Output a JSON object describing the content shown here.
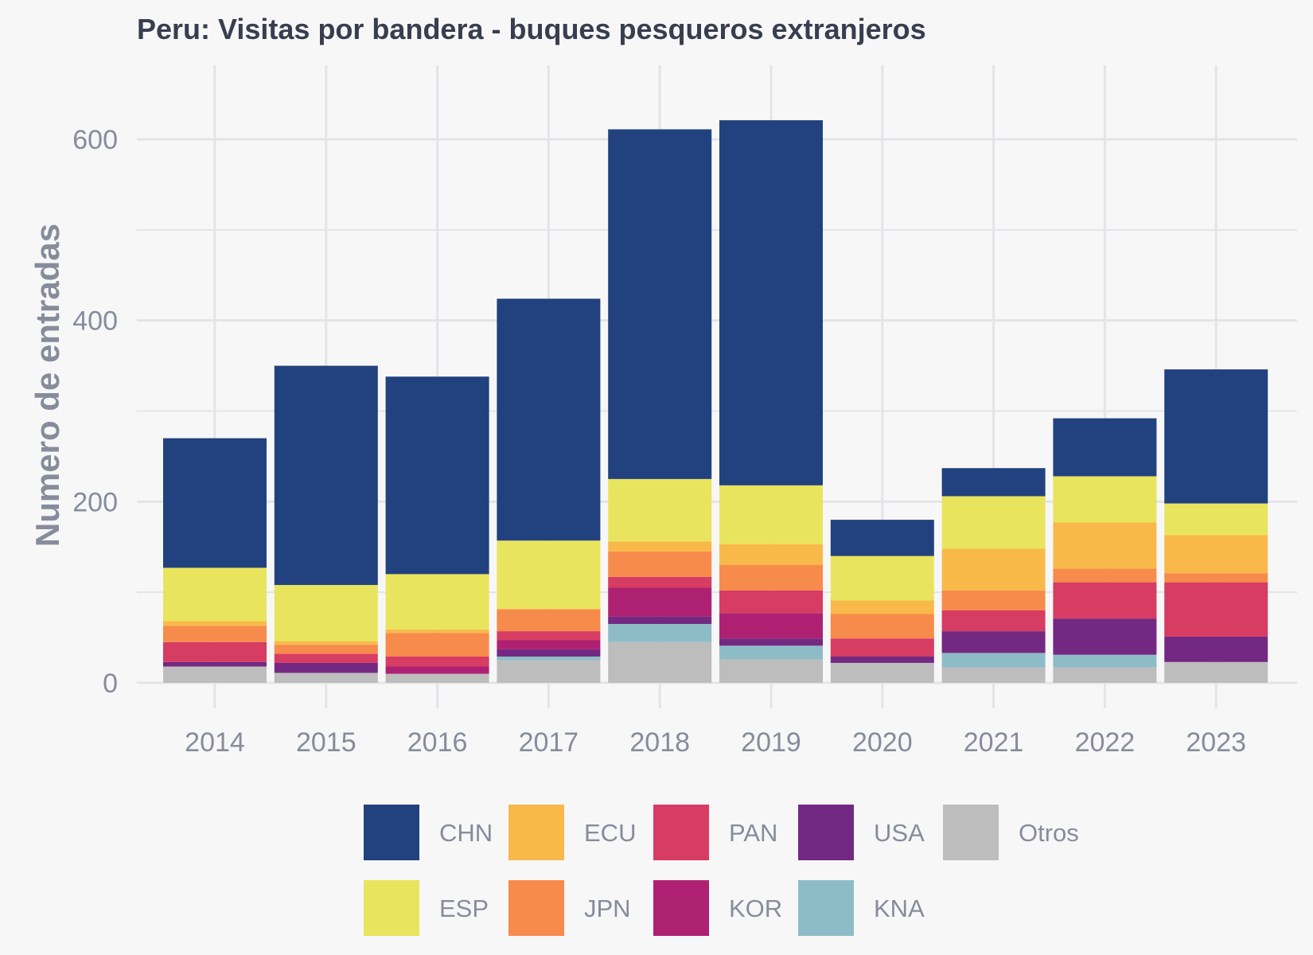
{
  "chart_data": {
    "type": "bar",
    "stacked": true,
    "title": "Peru:  Visitas por bandera - buques pesqueros extranjeros",
    "xlabel": "",
    "ylabel": "Numero de entradas",
    "ylim": [
      -10,
      680
    ],
    "yticks": [
      0,
      200,
      400,
      600
    ],
    "grid": true,
    "legend_position": "bottom",
    "categories": [
      "2014",
      "2015",
      "2016",
      "2017",
      "2018",
      "2019",
      "2020",
      "2021",
      "2022",
      "2023"
    ],
    "series": [
      {
        "name": "Otros",
        "color": "#bdbdbd",
        "values": [
          18,
          11,
          10,
          25,
          45,
          26,
          22,
          17,
          17,
          23
        ]
      },
      {
        "name": "KNA",
        "color": "#8dbcc7",
        "values": [
          0,
          0,
          0,
          4,
          20,
          15,
          0,
          16,
          14,
          0
        ]
      },
      {
        "name": "USA",
        "color": "#732982",
        "values": [
          5,
          11,
          0,
          8,
          8,
          8,
          7,
          24,
          40,
          28
        ]
      },
      {
        "name": "KOR",
        "color": "#ae2172",
        "values": [
          0,
          0,
          8,
          10,
          32,
          28,
          0,
          0,
          0,
          0
        ]
      },
      {
        "name": "PAN",
        "color": "#d73c62",
        "values": [
          22,
          10,
          11,
          10,
          12,
          25,
          20,
          23,
          40,
          60
        ]
      },
      {
        "name": "JPN",
        "color": "#f78b4b",
        "values": [
          18,
          10,
          26,
          24,
          28,
          28,
          27,
          22,
          15,
          10
        ]
      },
      {
        "name": "ECU",
        "color": "#f8b94a",
        "values": [
          5,
          4,
          4,
          1,
          11,
          23,
          15,
          46,
          51,
          42
        ]
      },
      {
        "name": "ESP",
        "color": "#e9e45d",
        "values": [
          59,
          62,
          61,
          75,
          69,
          65,
          49,
          58,
          51,
          35
        ]
      },
      {
        "name": "CHN",
        "color": "#21427e",
        "values": [
          143,
          242,
          218,
          267,
          386,
          403,
          40,
          31,
          64,
          148
        ]
      }
    ],
    "legend_order": [
      "CHN",
      "ECU",
      "PAN",
      "USA",
      "Otros",
      "ESP",
      "JPN",
      "KOR",
      "KNA"
    ]
  }
}
